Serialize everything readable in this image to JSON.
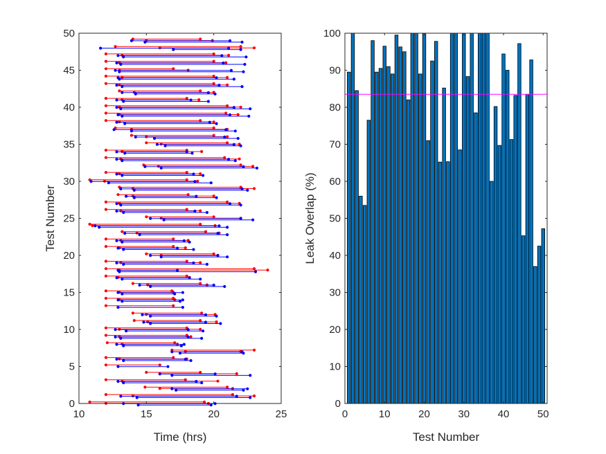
{
  "colors": {
    "axis": "#262626",
    "red_series": "#ff0000",
    "blue_series": "#0000ff",
    "bar_fill": "#0072bd",
    "bar_edge": "#000000",
    "reference_line": "#ff00ff"
  },
  "chart_data": [
    {
      "type": "interval",
      "title": "",
      "xlabel": "Time (hrs)",
      "ylabel": "Test Number",
      "xlim": [
        10,
        25
      ],
      "ylim": [
        0,
        50
      ],
      "xticks": [
        10,
        15,
        20,
        25
      ],
      "yticks": [
        0,
        5,
        10,
        15,
        20,
        25,
        30,
        35,
        40,
        45,
        50
      ],
      "grid": false,
      "series": [
        {
          "color": "red",
          "intervals": [
            [
              0,
              10.8,
              19.3
            ],
            [
              0,
              12.0,
              19.6
            ],
            [
              1,
              12.0,
              21.4
            ],
            [
              1,
              14.0,
              23.0
            ],
            [
              2,
              14.9,
              21.0
            ],
            [
              2,
              16.0,
              21.4
            ],
            [
              3,
              12.0,
              17.9
            ],
            [
              3,
              13.2,
              20.3
            ],
            [
              4,
              15.0,
              19.0
            ],
            [
              4,
              16.0,
              21.7
            ],
            [
              5,
              12.0,
              16.0
            ],
            [
              6,
              12.0,
              17.0
            ],
            [
              6,
              13.0,
              18.0
            ],
            [
              7,
              16.9,
              23.0
            ],
            [
              7,
              17.9,
              22.0
            ],
            [
              8,
              12.1,
              17.1
            ],
            [
              8,
              13.2,
              17.3
            ],
            [
              9,
              12.0,
              18.0
            ],
            [
              9,
              13.0,
              18.3
            ],
            [
              10,
              12.0,
              18.0
            ],
            [
              10,
              13.0,
              19.0
            ],
            [
              11,
              14.1,
              19.0
            ],
            [
              11,
              15.1,
              20.2
            ],
            [
              12,
              14.0,
              19.1
            ],
            [
              12,
              15.0,
              20.1
            ],
            [
              13,
              12.0,
              17.0
            ],
            [
              14,
              12.0,
              17.0
            ],
            [
              14,
              13.0,
              17.1
            ],
            [
              15,
              12.0,
              16.9
            ],
            [
              15,
              13.0,
              17.0
            ],
            [
              16,
              14.0,
              19.0
            ],
            [
              16,
              15.1,
              19.5
            ],
            [
              17,
              12.0,
              18.0
            ],
            [
              17,
              12.9,
              18.2
            ],
            [
              18,
              12.0,
              23.0
            ],
            [
              18,
              13.0,
              24.0
            ],
            [
              19,
              12.0,
              18.0
            ],
            [
              19,
              13.1,
              19.0
            ],
            [
              20,
              15.0,
              20.0
            ],
            [
              20,
              16.1,
              20.3
            ],
            [
              21,
              12.0,
              17.0
            ],
            [
              21,
              13.0,
              17.9
            ],
            [
              22,
              12.0,
              17.0
            ],
            [
              22,
              13.1,
              18.1
            ],
            [
              23,
              13.2,
              19.4
            ],
            [
              23,
              14.3,
              20.4
            ],
            [
              24,
              10.8,
              19.0
            ],
            [
              24,
              11.0,
              20.1
            ],
            [
              25,
              15.0,
              20.0
            ],
            [
              25,
              16.1,
              22.0
            ],
            [
              26,
              12.0,
              18.0
            ],
            [
              26,
              13.1,
              19.0
            ],
            [
              27,
              12.0,
              21.0
            ],
            [
              27,
              13.0,
              21.9
            ],
            [
              28,
              12.9,
              18.1
            ],
            [
              28,
              14.0,
              20.0
            ],
            [
              29,
              13.0,
              22.0
            ],
            [
              29,
              14.0,
              23.0
            ],
            [
              30,
              10.8,
              18.0
            ],
            [
              30,
              11.9,
              18.8
            ],
            [
              31,
              12.0,
              18.0
            ],
            [
              31,
              13.0,
              19.0
            ],
            [
              32,
              14.8,
              22.0
            ],
            [
              32,
              15.9,
              22.9
            ],
            [
              33,
              12.0,
              20.8
            ],
            [
              33,
              13.1,
              21.9
            ],
            [
              34,
              12.0,
              18.0
            ],
            [
              34,
              13.2,
              19.1
            ],
            [
              35,
              15.0,
              21.0
            ],
            [
              35,
              16.1,
              21.9
            ],
            [
              36,
              13.9,
              20.0
            ],
            [
              36,
              15.0,
              21.0
            ],
            [
              37,
              12.7,
              20.0
            ],
            [
              37,
              13.9,
              21.0
            ],
            [
              38,
              12.0,
              19.0
            ],
            [
              38,
              13.0,
              20.0
            ],
            [
              39,
              12.0,
              20.9
            ],
            [
              39,
              13.0,
              21.8
            ],
            [
              40,
              12.0,
              21.0
            ],
            [
              40,
              13.0,
              22.0
            ],
            [
              41,
              12.0,
              18.0
            ],
            [
              41,
              13.2,
              18.9
            ],
            [
              42,
              13.0,
              19.0
            ],
            [
              42,
              14.1,
              20.0
            ],
            [
              43,
              12.0,
              20.0
            ],
            [
              43,
              13.0,
              21.0
            ],
            [
              44,
              12.0,
              20.0
            ],
            [
              44,
              13.2,
              21.0
            ],
            [
              45,
              12.0,
              17.0
            ],
            [
              45,
              13.0,
              18.1
            ],
            [
              46,
              12.0,
              20.0
            ],
            [
              46,
              13.0,
              20.9
            ],
            [
              47,
              12.0,
              20.0
            ],
            [
              47,
              13.2,
              21.1
            ],
            [
              48,
              12.7,
              22.0
            ],
            [
              48,
              16.0,
              23.0
            ],
            [
              49,
              14.0,
              19.0
            ],
            [
              49,
              15.0,
              19.9
            ]
          ]
        },
        {
          "color": "blue",
          "intervals": [
            [
              0,
              13.3,
              20.1
            ],
            [
              0,
              14.4,
              19.8
            ],
            [
              1,
              13.1,
              21.7
            ],
            [
              1,
              14.3,
              22.7
            ],
            [
              2,
              16.9,
              22.5
            ],
            [
              2,
              17.2,
              22.2
            ],
            [
              3,
              12.9,
              18.7
            ],
            [
              3,
              13.3,
              19.1
            ],
            [
              4,
              16.0,
              20.1
            ],
            [
              4,
              16.9,
              22.7
            ],
            [
              5,
              12.9,
              16.6
            ],
            [
              6,
              12.8,
              17.9
            ],
            [
              6,
              13.3,
              18.3
            ],
            [
              7,
              16.9,
              22.1
            ],
            [
              7,
              17.5,
              22.2
            ],
            [
              8,
              12.8,
              17.8
            ],
            [
              8,
              13.3,
              17.6
            ],
            [
              9,
              12.7,
              18.1
            ],
            [
              9,
              13.1,
              19.1
            ],
            [
              10,
              12.7,
              18.1
            ],
            [
              10,
              13.5,
              19.2
            ],
            [
              11,
              14.8,
              19.4
            ],
            [
              11,
              15.3,
              20.5
            ],
            [
              12,
              14.7,
              19.4
            ],
            [
              12,
              15.3,
              20.2
            ],
            [
              13,
              12.9,
              17.7
            ],
            [
              14,
              12.9,
              17.7
            ],
            [
              14,
              13.2,
              17.5
            ],
            [
              15,
              12.9,
              17.7
            ],
            [
              15,
              13.2,
              17.1
            ],
            [
              16,
              14.5,
              20.0
            ],
            [
              16,
              15.3,
              20.8
            ],
            [
              17,
              12.8,
              18.2
            ],
            [
              17,
              13.2,
              19.0
            ],
            [
              18,
              12.9,
              17.3
            ],
            [
              18,
              13.0,
              23.1
            ],
            [
              19,
              12.8,
              18.5
            ],
            [
              19,
              13.3,
              19.5
            ],
            [
              20,
              15.3,
              20.3
            ],
            [
              20,
              16.1,
              21.0
            ],
            [
              21,
              12.9,
              17.3
            ],
            [
              21,
              13.3,
              18.5
            ],
            [
              22,
              12.8,
              17.8
            ],
            [
              22,
              13.2,
              18.2
            ],
            [
              23,
              13.4,
              20.3
            ],
            [
              23,
              14.5,
              21.0
            ],
            [
              24,
              11.2,
              20.4
            ],
            [
              24,
              11.5,
              21.0
            ],
            [
              25,
              15.3,
              22.0
            ],
            [
              25,
              16.3,
              22.9
            ],
            [
              26,
              12.8,
              18.6
            ],
            [
              26,
              13.3,
              19.5
            ],
            [
              27,
              12.8,
              21.2
            ],
            [
              27,
              13.1,
              22.0
            ],
            [
              28,
              13.5,
              18.7
            ],
            [
              28,
              14.1,
              20.2
            ],
            [
              29,
              13.1,
              22.1
            ],
            [
              29,
              14.1,
              22.5
            ],
            [
              30,
              10.9,
              18.6
            ],
            [
              30,
              12.2,
              19.8
            ],
            [
              31,
              12.8,
              18.5
            ],
            [
              31,
              13.2,
              19.2
            ],
            [
              32,
              14.9,
              22.2
            ],
            [
              32,
              16.1,
              23.2
            ],
            [
              33,
              12.8,
              21.1
            ],
            [
              33,
              13.2,
              21.6
            ],
            [
              34,
              12.8,
              18.0
            ],
            [
              34,
              13.4,
              18.4
            ],
            [
              35,
              15.8,
              21.5
            ],
            [
              35,
              16.4,
              22.0
            ],
            [
              36,
              14.2,
              20.8
            ],
            [
              36,
              15.6,
              21.8
            ],
            [
              37,
              12.6,
              20.9
            ],
            [
              37,
              13.9,
              21.6
            ],
            [
              38,
              12.8,
              19.7
            ],
            [
              38,
              13.4,
              20.2
            ],
            [
              39,
              12.9,
              21.2
            ],
            [
              39,
              13.2,
              22.6
            ],
            [
              40,
              12.8,
              21.5
            ],
            [
              40,
              13.1,
              22.7
            ],
            [
              41,
              12.8,
              18.3
            ],
            [
              41,
              13.3,
              19.6
            ],
            [
              42,
              13.2,
              19.6
            ],
            [
              42,
              14.2,
              20.1
            ],
            [
              43,
              12.8,
              20.4
            ],
            [
              43,
              13.2,
              22.1
            ],
            [
              44,
              12.9,
              20.2
            ],
            [
              44,
              13.0,
              21.5
            ],
            [
              45,
              12.7,
              21.3
            ],
            [
              45,
              13.0,
              22.2
            ],
            [
              46,
              12.8,
              20.7
            ],
            [
              46,
              13.1,
              22.3
            ],
            [
              47,
              12.9,
              20.6
            ],
            [
              47,
              13.3,
              22.4
            ],
            [
              48,
              11.6,
              21.1
            ],
            [
              48,
              17.0,
              22.0
            ],
            [
              49,
              13.9,
              21.2
            ],
            [
              49,
              14.9,
              22.1
            ]
          ]
        }
      ]
    },
    {
      "type": "bar",
      "title": "",
      "xlabel": "Test Number",
      "ylabel": "Leak Overlap (%)",
      "xlim": [
        0,
        51
      ],
      "ylim": [
        0,
        100
      ],
      "xticks": [
        0,
        10,
        20,
        30,
        40,
        50
      ],
      "yticks": [
        0,
        10,
        20,
        30,
        40,
        50,
        60,
        70,
        80,
        90,
        100
      ],
      "grid": false,
      "categories": [
        1,
        2,
        3,
        4,
        5,
        6,
        7,
        8,
        9,
        10,
        11,
        12,
        13,
        14,
        15,
        16,
        17,
        18,
        19,
        20,
        21,
        22,
        23,
        24,
        25,
        26,
        27,
        28,
        29,
        30,
        31,
        32,
        33,
        34,
        35,
        36,
        37,
        38,
        39,
        40,
        41,
        42,
        43,
        44,
        45,
        46,
        47,
        48,
        49,
        50
      ],
      "values": [
        89.5,
        100,
        84.5,
        56,
        53.5,
        76.5,
        98,
        89.5,
        90.5,
        96.5,
        91,
        89,
        99.5,
        96.3,
        95,
        82,
        100,
        100,
        89,
        100,
        71,
        92.5,
        97.8,
        65.2,
        85.2,
        65.3,
        100,
        100,
        68.5,
        100,
        88.3,
        100,
        78.5,
        100,
        100,
        100,
        60,
        80.2,
        69.7,
        94.4,
        90,
        71.3,
        83.2,
        97.2,
        45.3,
        83.5,
        92.8,
        37,
        42.5,
        47.2
      ],
      "reference_line": 83.5
    }
  ]
}
